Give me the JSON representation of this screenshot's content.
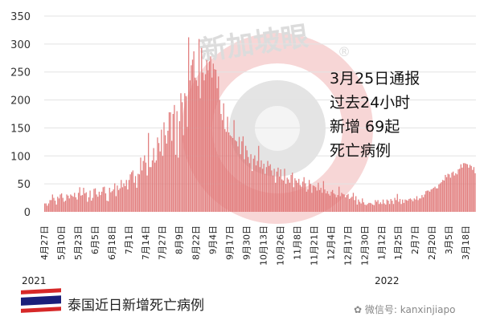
{
  "chart_data": {
    "type": "bar",
    "title": "",
    "xlabel": "",
    "ylabel": "",
    "ylim": [
      0,
      350
    ],
    "yticks": [
      0,
      50,
      100,
      150,
      200,
      250,
      300,
      350
    ],
    "grid": true,
    "bar_color": "#e07474",
    "x_start": "2021-04-27",
    "x_end": "2022-03-25",
    "xtick_labels": [
      "4月27日",
      "5月10日",
      "5月23日",
      "6月5日",
      "6月18日",
      "7月1日",
      "7月14日",
      "7月27日",
      "8月9日",
      "8月22日",
      "9月4日",
      "9月17日",
      "9月30日",
      "10月13日",
      "10月26日",
      "11月8日",
      "11月21日",
      "12月4日",
      "12月17日",
      "12月30日",
      "1月12日",
      "1月25日",
      "2月7日",
      "2月20日",
      "3月5日",
      "3月18日"
    ],
    "year_labels": [
      "2021",
      "2022"
    ],
    "values": [
      15,
      15,
      11,
      15,
      21,
      21,
      31,
      25,
      20,
      13,
      27,
      24,
      31,
      33,
      25,
      18,
      20,
      31,
      29,
      24,
      31,
      29,
      27,
      34,
      26,
      22,
      34,
      44,
      29,
      30,
      43,
      33,
      35,
      18,
      26,
      38,
      20,
      25,
      41,
      42,
      31,
      27,
      36,
      30,
      36,
      44,
      45,
      33,
      20,
      19,
      43,
      35,
      37,
      40,
      51,
      28,
      47,
      39,
      42,
      57,
      44,
      51,
      46,
      57,
      40,
      57,
      67,
      71,
      74,
      52,
      64,
      43,
      68,
      67,
      97,
      74,
      91,
      101,
      88,
      65,
      141,
      80,
      80,
      92,
      114,
      88,
      92,
      133,
      123,
      108,
      147,
      100,
      160,
      137,
      122,
      145,
      178,
      178,
      127,
      175,
      191,
      102,
      180,
      97,
      162,
      212,
      196,
      137,
      212,
      207,
      152,
      312,
      235,
      262,
      272,
      287,
      240,
      235,
      225,
      309,
      203,
      293,
      249,
      235,
      246,
      271,
      253,
      269,
      278,
      240,
      265,
      255,
      254,
      221,
      242,
      200,
      175,
      164,
      194,
      148,
      143,
      170,
      142,
      137,
      135,
      132,
      164,
      128,
      126,
      117,
      134,
      103,
      126,
      135,
      94,
      118,
      110,
      98,
      87,
      103,
      73,
      95,
      101,
      83,
      91,
      118,
      80,
      92,
      77,
      86,
      68,
      80,
      91,
      82,
      85,
      74,
      65,
      77,
      52,
      72,
      79,
      63,
      76,
      58,
      56,
      77,
      50,
      61,
      58,
      52,
      66,
      70,
      44,
      60,
      56,
      52,
      59,
      48,
      45,
      54,
      62,
      51,
      36,
      40,
      57,
      50,
      34,
      47,
      46,
      44,
      38,
      52,
      39,
      43,
      34,
      55,
      40,
      33,
      37,
      32,
      29,
      36,
      39,
      33,
      31,
      26,
      30,
      45,
      28,
      34,
      32,
      31,
      26,
      30,
      32,
      23,
      25,
      27,
      34,
      21,
      28,
      13,
      22,
      18,
      15,
      24,
      17,
      13,
      12,
      14,
      16,
      16,
      15,
      13,
      12,
      21,
      18,
      21,
      14,
      17,
      14,
      22,
      15,
      13,
      22,
      20,
      14,
      23,
      20,
      14,
      25,
      21,
      32,
      18,
      23,
      14,
      22,
      16,
      22,
      21,
      20,
      23,
      24,
      22,
      19,
      24,
      22,
      28,
      21,
      24,
      24,
      30,
      26,
      31,
      37,
      38,
      38,
      36,
      40,
      41,
      43,
      45,
      42,
      42,
      49,
      51,
      53,
      57,
      56,
      66,
      62,
      68,
      67,
      61,
      70,
      72,
      65,
      69,
      67,
      76,
      77,
      85,
      79,
      87,
      87,
      86,
      85,
      79,
      84,
      82,
      75,
      80,
      69
    ],
    "annotation": "3月25日通报\n过去24小时\n新增 69起\n死亡病例"
  },
  "caption": "泰国近日新增死亡病例",
  "credit": "微信号: kanxinjiapo",
  "watermark": "新加坡眼®",
  "flag": "thailand-flag"
}
